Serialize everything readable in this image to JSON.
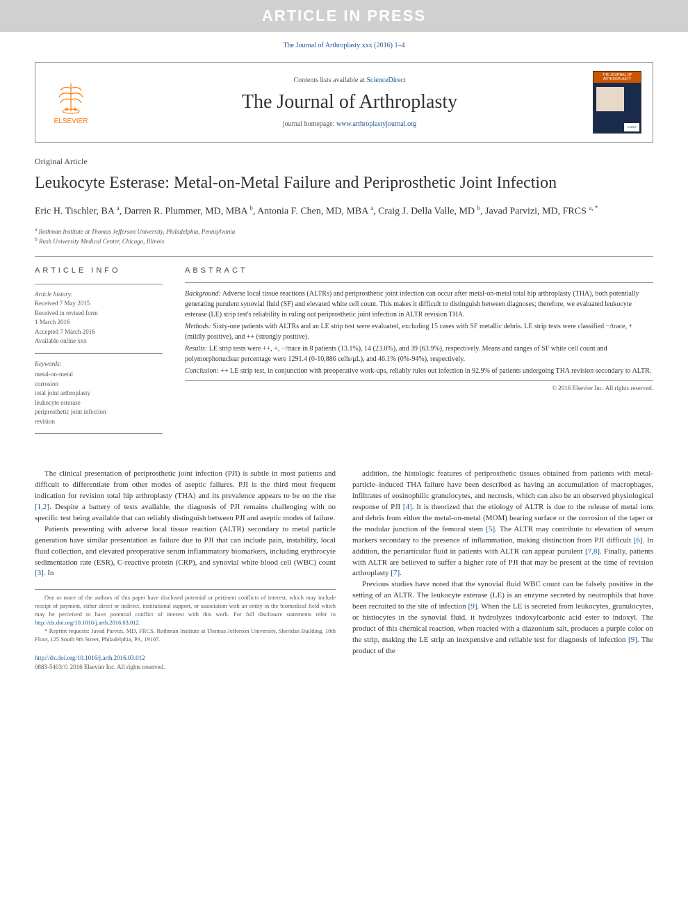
{
  "banner": "ARTICLE IN PRESS",
  "citation": "The Journal of Arthroplasty xxx (2016) 1–4",
  "masthead": {
    "elsevier_label": "ELSEVIER",
    "contents_prefix": "Contents lists available at ",
    "contents_link": "ScienceDirect",
    "journal_name": "The Journal of Arthroplasty",
    "homepage_prefix": "journal homepage: ",
    "homepage_url": "www.arthroplastyjournal.org",
    "cover_title": "ARTHROPLASTY",
    "aahks": "AAHKS"
  },
  "article": {
    "type": "Original Article",
    "title": "Leukocyte Esterase: Metal-on-Metal Failure and Periprosthetic Joint Infection",
    "authors_html": "Eric H. Tischler, BA <sup>a</sup>, Darren R. Plummer, MD, MBA <sup>b</sup>, Antonia F. Chen, MD, MBA <sup>a</sup>, Craig J. Della Valle, MD <sup>b</sup>, Javad Parvizi, MD, FRCS <sup>a, </sup><sup class='star'>*</sup>",
    "affiliations": [
      {
        "sup": "a",
        "text": "Rothman Institute at Thomas Jefferson University, Philadelphia, Pennsylvania"
      },
      {
        "sup": "b",
        "text": "Rush University Medical Center, Chicago, Illinois"
      }
    ]
  },
  "info": {
    "heading": "ARTICLE INFO",
    "history_label": "Article history:",
    "history": [
      "Received 7 May 2015",
      "Received in revised form",
      "1 March 2016",
      "Accepted 7 March 2016",
      "Available online xxx"
    ],
    "keywords_label": "Keywords:",
    "keywords": [
      "metal-on-metal",
      "corrosion",
      "total joint arthroplasty",
      "leukocyte esterase",
      "periprosthetic joint infection",
      "revision"
    ]
  },
  "abstract": {
    "heading": "ABSTRACT",
    "sections": [
      {
        "label": "Background:",
        "text": "Adverse local tissue reactions (ALTRs) and periprosthetic joint infection can occur after metal-on-metal total hip arthroplasty (THA), both potentially generating purulent synovial fluid (SF) and elevated white cell count. This makes it difficult to distinguish between diagnoses; therefore, we evaluated leukocyte esterase (LE) strip test's reliability in ruling out periprosthetic joint infection in ALTR revision THA."
      },
      {
        "label": "Methods:",
        "text": "Sixty-one patients with ALTRs and an LE strip test were evaluated, excluding 15 cases with SF metallic debris. LE strip tests were classified −/trace, + (mildly positive), and ++ (strongly positive)."
      },
      {
        "label": "Results:",
        "text": "LE strip tests were ++, +, −/trace in 8 patients (13.1%), 14 (23.0%), and 39 (63.9%), respectively. Means and ranges of SF white cell count and polymorphonuclear percentage were 1291.4 (0-10,886 cells/μL), and 46.1% (0%-94%), respectively."
      },
      {
        "label": "Conclusion:",
        "text": "++ LE strip test, in conjunction with preoperative work-ups, reliably rules out infection in 92.9% of patients undergoing THA revision secondary to ALTR."
      }
    ],
    "copyright": "© 2016 Elsevier Inc. All rights reserved."
  },
  "body": {
    "col1": {
      "p1": "The clinical presentation of periprosthetic joint infection (PJI) is subtle in most patients and difficult to differentiate from other modes of aseptic failures. PJI is the third most frequent indication for revision total hip arthroplasty (THA) and its prevalence appears to be on the rise [1,2]. Despite a battery of tests available, the diagnosis of PJI remains challenging with no specific test being available that can reliably distinguish between PJI and aseptic modes of failure.",
      "p2": "Patients presenting with adverse local tissue reaction (ALTR) secondary to metal particle generation have similar presentation as failure due to PJI that can include pain, instability, local fluid collection, and elevated preoperative serum inflammatory biomarkers, including erythrocyte sedimentation rate (ESR), C-reactive protein (CRP), and synovial white blood cell (WBC) count [3]. In"
    },
    "col2": {
      "p1": "addition, the histologic features of periprosthetic tissues obtained from patients with metal-particle–induced THA failure have been described as having an accumulation of macrophages, infiltrates of eosinophilic granulocytes, and necrosis, which can also be an observed physiological response of PJI [4]. It is theorized that the etiology of ALTR is due to the release of metal ions and debris from either the metal-on-metal (MOM) bearing surface or the corrosion of the taper or the modular junction of the femoral stem [5]. The ALTR may contribute to elevation of serum markers secondary to the presence of inflammation, making distinction from PJI difficult [6]. In addition, the periarticular fluid in patients with ALTR can appear purulent [7,8]. Finally, patients with ALTR are believed to suffer a higher rate of PJI that may be present at the time of revision arthroplasty [7].",
      "p2": "Previous studies have noted that the synovial fluid WBC count can be falsely positive in the setting of an ALTR. The leukocyte esterase (LE) is an enzyme secreted by neutrophils that have been recruited to the site of infection [9]. When the LE is secreted from leukocytes, granulocytes, or histiocytes in the synovial fluid, it hydrolyzes indoxylcarbonic acid ester to indoxyl. The product of this chemical reaction, when reacted with a diazonium salt, produces a purple color on the strip, making the LE strip an inexpensive and reliable test for diagnosis of infection [9]. The product of the"
    }
  },
  "footnotes": {
    "conflict": "One or more of the authors of this paper have disclosed potential or pertinent conflicts of interest, which may include receipt of payment, either direct or indirect, institutional support, or association with an entity in the biomedical field which may be perceived to have potential conflict of interest with this work. For full disclosure statements refer to ",
    "conflict_url": "http://dx.doi.org/10.1016/j.arth.2016.03.012",
    "reprint": "* Reprint requests: Javad Parvizi, MD, FRCS, Rothman Institute at Thomas Jefferson University, Sheridan Building, 10th Floor, 125 South 9th Street, Philadelphia, PA, 19107."
  },
  "doi": {
    "url": "http://dx.doi.org/10.1016/j.arth.2016.03.012",
    "issn": "0883-5403/© 2016 Elsevier Inc. All rights reserved."
  },
  "colors": {
    "banner_bg": "#d0d0d0",
    "banner_fg": "#ffffff",
    "link": "#1a5490",
    "elsevier_orange": "#ff7800",
    "cover_bg": "#1a2a4a",
    "cover_banner": "#cc5500",
    "border": "#888888",
    "text": "#333333",
    "muted": "#555555"
  }
}
